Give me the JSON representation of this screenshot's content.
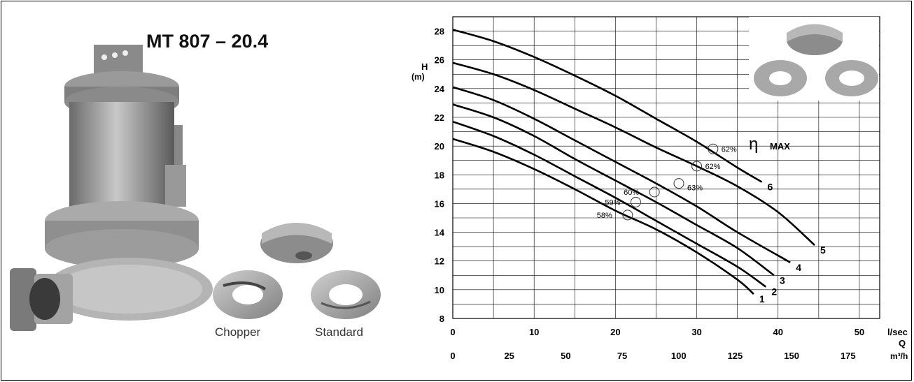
{
  "product": {
    "title": "MT 807 – 20.4",
    "impeller_labels": [
      "Chopper",
      "Standard"
    ]
  },
  "chart_data": {
    "type": "line",
    "title": "",
    "ylabel": "H",
    "yunit": "(m)",
    "ylim": [
      8,
      29
    ],
    "yticks": [
      8,
      10,
      12,
      14,
      16,
      18,
      20,
      22,
      24,
      26,
      28
    ],
    "x_axes": [
      {
        "unit": "l/sec",
        "label": "",
        "lim": [
          0,
          52.5
        ],
        "ticks": [
          0,
          10,
          20,
          30,
          40,
          50
        ]
      },
      {
        "unit": "m³/h",
        "label": "Q",
        "lim": [
          0,
          189
        ],
        "ticks": [
          0,
          25,
          50,
          75,
          100,
          125,
          150,
          175
        ]
      }
    ],
    "grid": true,
    "series": [
      {
        "name": "1",
        "x": [
          0,
          5,
          10,
          15,
          20,
          25,
          30,
          35,
          37
        ],
        "y": [
          20.5,
          19.6,
          18.4,
          17.0,
          15.5,
          14.2,
          12.6,
          10.7,
          9.7
        ]
      },
      {
        "name": "2",
        "x": [
          0,
          5,
          10,
          15,
          20,
          25,
          30,
          35,
          38.5
        ],
        "y": [
          21.7,
          20.7,
          19.4,
          17.9,
          16.4,
          14.8,
          13.2,
          11.6,
          10.2
        ]
      },
      {
        "name": "3",
        "x": [
          0,
          5,
          10,
          15,
          20,
          25,
          30,
          35,
          39.5
        ],
        "y": [
          22.9,
          22.0,
          20.7,
          19.1,
          17.6,
          16.1,
          14.5,
          12.9,
          11.0
        ]
      },
      {
        "name": "4",
        "x": [
          0,
          5,
          10,
          15,
          20,
          25,
          30,
          35,
          41.5
        ],
        "y": [
          24.1,
          23.2,
          21.9,
          20.4,
          18.9,
          17.4,
          15.8,
          14.0,
          11.9
        ]
      },
      {
        "name": "5",
        "x": [
          0,
          5,
          10,
          15,
          20,
          25,
          30,
          35,
          40,
          44.5
        ],
        "y": [
          25.8,
          25.0,
          23.9,
          22.6,
          21.3,
          19.9,
          18.6,
          17.2,
          15.4,
          13.1
        ]
      },
      {
        "name": "6",
        "x": [
          0,
          5,
          10,
          15,
          20,
          25,
          30,
          35,
          38
        ],
        "y": [
          28.1,
          27.3,
          26.2,
          24.9,
          23.5,
          21.9,
          20.3,
          18.5,
          17.5
        ]
      }
    ],
    "efficiency_points": [
      {
        "label": "58%",
        "x": 21.5,
        "y": 15.2
      },
      {
        "label": "59%",
        "x": 22.5,
        "y": 16.1
      },
      {
        "label": "60%",
        "x": 24.8,
        "y": 16.8
      },
      {
        "label": "63%",
        "x": 27.8,
        "y": 17.4
      },
      {
        "label": "62%",
        "x": 30.0,
        "y": 18.6
      },
      {
        "label": "62%",
        "x": 32.0,
        "y": 19.8
      }
    ],
    "annotation": {
      "symbol": "η",
      "text": "MAX"
    }
  }
}
